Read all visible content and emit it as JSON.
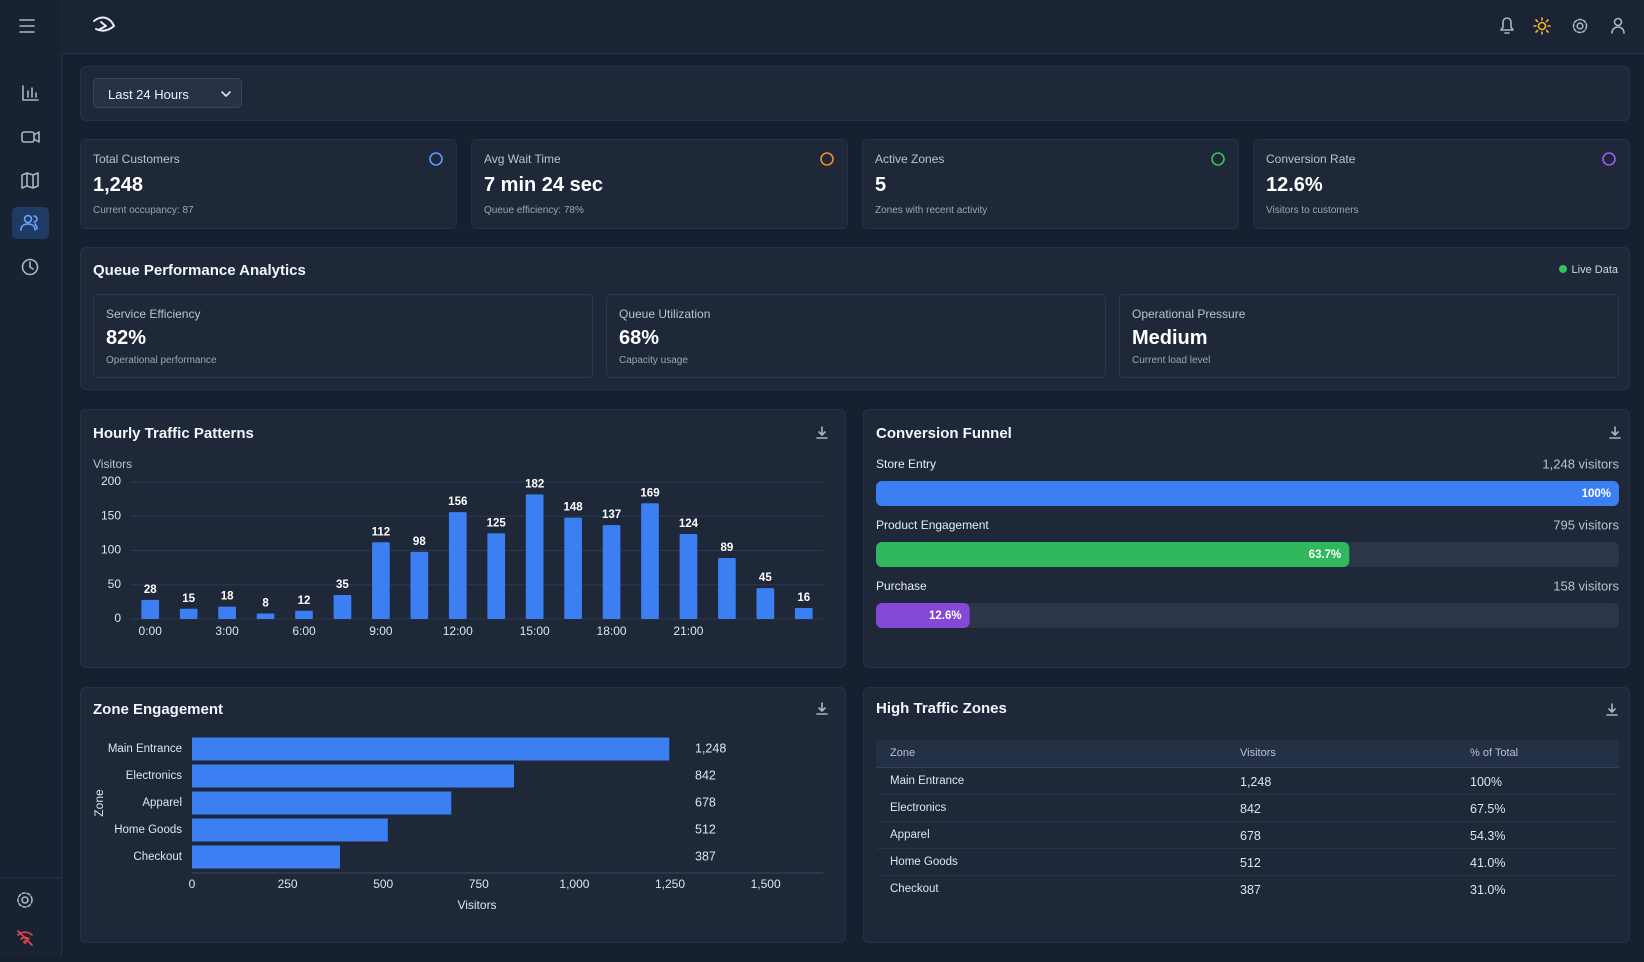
{
  "filter": {
    "selected": "Last 24 Hours"
  },
  "kpis": [
    {
      "label": "Total Customers",
      "value": "1,248",
      "note": "Current occupancy: 87"
    },
    {
      "label": "Avg Wait Time",
      "value": "7 min 24 sec",
      "note": "Queue efficiency: 78%"
    },
    {
      "label": "Active Zones",
      "value": "5",
      "note": "Zones with recent activity"
    },
    {
      "label": "Conversion Rate",
      "value": "12.6%",
      "note": "Visitors to customers"
    }
  ],
  "queue": {
    "title": "Queue Performance Analytics",
    "status": "Live Data",
    "metrics": [
      {
        "label": "Service Efficiency",
        "value": "82%",
        "note": "Operational performance"
      },
      {
        "label": "Queue Utilization",
        "value": "68%",
        "note": "Capacity usage"
      },
      {
        "label": "Operational Pressure",
        "value": "Medium",
        "note": "Current load level"
      }
    ]
  },
  "hourly_chart": {
    "type": "bar",
    "title": "Hourly Traffic Patterns",
    "y_label": "Visitors",
    "categories": [
      "0:00",
      null,
      "3:00",
      null,
      "6:00",
      null,
      "9:00",
      null,
      "12:00",
      null,
      "15:00",
      null,
      "18:00",
      null,
      "21:00",
      null,
      null,
      null
    ],
    "values": [
      28,
      15,
      18,
      8,
      12,
      35,
      112,
      98,
      156,
      125,
      182,
      148,
      137,
      169,
      124,
      89,
      45,
      16
    ],
    "color": "#3b7ff2",
    "ylim": [
      0,
      200
    ],
    "yticks": [
      0,
      50,
      100,
      150,
      200
    ],
    "grid": true
  },
  "funnel": {
    "title": "Conversion Funnel",
    "stages": [
      {
        "name": "Store Entry",
        "visitors": "1,248 visitors",
        "percent": 100,
        "percent_label": "100%",
        "color": "#3b7ff2"
      },
      {
        "name": "Product Engagement",
        "visitors": "795 visitors",
        "percent": 63.7,
        "percent_label": "63.7%",
        "color": "#2fb85c"
      },
      {
        "name": "Purchase",
        "visitors": "158 visitors",
        "percent": 12.6,
        "percent_label": "12.6%",
        "color": "#8447d6"
      }
    ]
  },
  "zone_chart": {
    "type": "hbar",
    "title": "Zone Engagement",
    "x_label": "Visitors",
    "y_label": "Zone",
    "categories": [
      "Main Entrance",
      "Electronics",
      "Apparel",
      "Home Goods",
      "Checkout"
    ],
    "values": [
      1248,
      842,
      678,
      512,
      387
    ],
    "value_labels": [
      "1,248",
      "842",
      "678",
      "512",
      "387"
    ],
    "color": "#3b7ff2",
    "xlim": [
      0,
      1650
    ],
    "xticks": [
      0,
      250,
      500,
      750,
      {
        "value": 1000,
        "label": "1,000"
      },
      {
        "value": 1250,
        "label": "1,250"
      },
      {
        "value": 1500,
        "label": "1,500"
      }
    ],
    "grid": false
  },
  "zone_table": {
    "title": "High Traffic Zones",
    "columns": [
      "Zone",
      "Visitors",
      "% of Total"
    ],
    "rows": [
      [
        "Main Entrance",
        "1,248",
        "100%"
      ],
      [
        "Electronics",
        "842",
        "67.5%"
      ],
      [
        "Apparel",
        "678",
        "54.3%"
      ],
      [
        "Home Goods",
        "512",
        "41.0%"
      ],
      [
        "Checkout",
        "387",
        "31.0%"
      ]
    ]
  }
}
